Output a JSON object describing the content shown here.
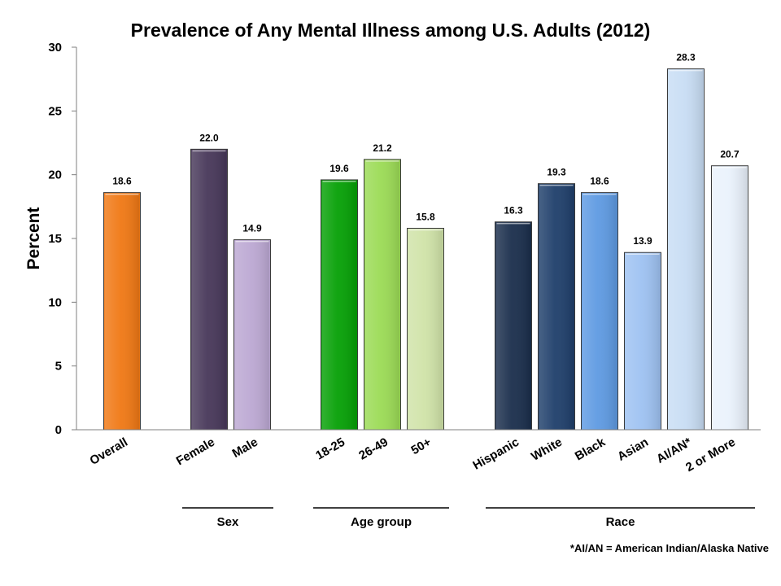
{
  "chart_data": {
    "type": "bar",
    "title": "Prevalence of Any Mental Illness among U.S. Adults (2012)",
    "ylabel": "Percent",
    "ylim": [
      0,
      30
    ],
    "yticks": [
      "0",
      "5",
      "10",
      "15",
      "20",
      "25",
      "30"
    ],
    "grid": false,
    "categories": [
      "Overall",
      "Female",
      "Male",
      "18-25",
      "26-49",
      "50+",
      "Hispanic",
      "White",
      "Black",
      "Asian",
      "AI/AN*",
      "2 or More"
    ],
    "values": [
      18.6,
      22.0,
      14.9,
      19.6,
      21.2,
      15.8,
      16.3,
      19.3,
      18.6,
      13.9,
      28.3,
      20.7
    ],
    "value_labels": [
      "18.6",
      "22.0",
      "14.9",
      "19.6",
      "21.2",
      "15.8",
      "16.3",
      "19.3",
      "18.6",
      "13.9",
      "28.3",
      "20.7"
    ],
    "colors": [
      "#F07814",
      "#473759",
      "#BCA8D3",
      "#05A005",
      "#9BDB55",
      "#D0E3A8",
      "#1A2E4C",
      "#1F3F6B",
      "#5E9AE2",
      "#9EC2F2",
      "#C8DDF4",
      "#EAF2FC"
    ],
    "groups": [
      {
        "label": "Sex",
        "members": [
          "Female",
          "Male"
        ]
      },
      {
        "label": "Age group",
        "members": [
          "18-25",
          "26-49",
          "50+"
        ]
      },
      {
        "label": "Race",
        "members": [
          "Hispanic",
          "White",
          "Black",
          "Asian",
          "AI/AN*",
          "2 or More"
        ]
      }
    ],
    "footnote": "*AI/AN = American Indian/Alaska Native"
  }
}
